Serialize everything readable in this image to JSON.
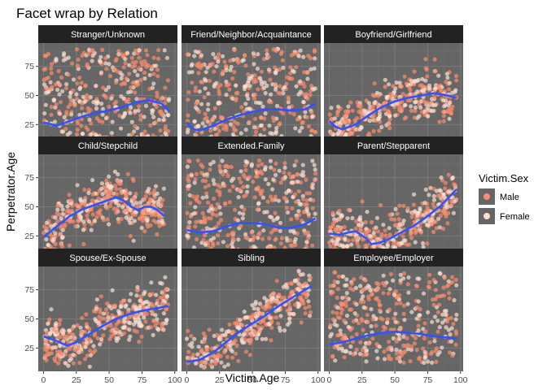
{
  "chart_data": {
    "type": "scatter",
    "title": "Facet wrap by Relation",
    "xlabel": "Victim.Age",
    "ylabel": "Perpetrator.Age",
    "xlim": [
      -4,
      102
    ],
    "ylim": [
      5,
      95
    ],
    "x_ticks": [
      0,
      25,
      50,
      75,
      100
    ],
    "y_ticks": [
      25,
      50,
      75
    ],
    "grid": true,
    "legend": {
      "title": "Victim.Sex",
      "position": "right",
      "entries": [
        {
          "label": "Male",
          "color": "#fc8d6e"
        },
        {
          "label": "Female",
          "color": "#fde0d2"
        }
      ]
    },
    "colors": {
      "panel_bg": "#666666",
      "strip_bg": "#222222",
      "grid_major": "#7a7a7a",
      "grid_minor": "#707070",
      "smooth_line": "#3352ff"
    },
    "facets": [
      {
        "label": "Stranger/Unknown",
        "smooth": [
          [
            0,
            27
          ],
          [
            10,
            24
          ],
          [
            20,
            28
          ],
          [
            30,
            32
          ],
          [
            40,
            35
          ],
          [
            50,
            37
          ],
          [
            60,
            40
          ],
          [
            70,
            44
          ],
          [
            80,
            46
          ],
          [
            90,
            43
          ],
          [
            96,
            36
          ]
        ]
      },
      {
        "label": "Friend/Neighbor/Acquaintance",
        "smooth": [
          [
            0,
            27
          ],
          [
            5,
            21
          ],
          [
            10,
            20
          ],
          [
            20,
            24
          ],
          [
            30,
            29
          ],
          [
            40,
            33
          ],
          [
            50,
            36
          ],
          [
            60,
            38
          ],
          [
            70,
            38
          ],
          [
            80,
            37
          ],
          [
            90,
            38
          ],
          [
            98,
            43
          ]
        ]
      },
      {
        "label": "Boyfriend/Girlfriend",
        "smooth": [
          [
            0,
            28
          ],
          [
            5,
            23
          ],
          [
            10,
            21
          ],
          [
            20,
            25
          ],
          [
            30,
            33
          ],
          [
            40,
            40
          ],
          [
            50,
            45
          ],
          [
            60,
            48
          ],
          [
            70,
            50
          ],
          [
            80,
            52
          ],
          [
            90,
            50
          ],
          [
            97,
            48
          ]
        ]
      },
      {
        "label": "Child/Stepchild",
        "smooth": [
          [
            0,
            24
          ],
          [
            10,
            33
          ],
          [
            20,
            42
          ],
          [
            30,
            48
          ],
          [
            40,
            52
          ],
          [
            50,
            56
          ],
          [
            55,
            58
          ],
          [
            60,
            56
          ],
          [
            67,
            50
          ],
          [
            72,
            47
          ],
          [
            77,
            50
          ],
          [
            82,
            50
          ],
          [
            87,
            47
          ],
          [
            92,
            42
          ]
        ]
      },
      {
        "label": "Extended.Family",
        "smooth": [
          [
            0,
            30
          ],
          [
            10,
            28
          ],
          [
            20,
            29
          ],
          [
            30,
            33
          ],
          [
            40,
            36
          ],
          [
            50,
            36
          ],
          [
            60,
            35
          ],
          [
            70,
            32
          ],
          [
            80,
            32
          ],
          [
            90,
            35
          ],
          [
            98,
            40
          ]
        ]
      },
      {
        "label": "Parent/Stepparent",
        "smooth": [
          [
            0,
            27
          ],
          [
            8,
            26
          ],
          [
            15,
            28
          ],
          [
            20,
            29
          ],
          [
            28,
            23
          ],
          [
            32,
            18
          ],
          [
            38,
            19
          ],
          [
            45,
            22
          ],
          [
            55,
            28
          ],
          [
            65,
            34
          ],
          [
            75,
            42
          ],
          [
            85,
            51
          ],
          [
            97,
            65
          ]
        ]
      },
      {
        "label": "Spouse/Ex-Spouse",
        "smooth": [
          [
            0,
            35
          ],
          [
            10,
            31
          ],
          [
            18,
            27
          ],
          [
            25,
            30
          ],
          [
            35,
            37
          ],
          [
            45,
            44
          ],
          [
            55,
            50
          ],
          [
            65,
            54
          ],
          [
            75,
            57
          ],
          [
            85,
            59
          ],
          [
            95,
            61
          ]
        ]
      },
      {
        "label": "Sibling",
        "smooth": [
          [
            0,
            13
          ],
          [
            10,
            15
          ],
          [
            20,
            21
          ],
          [
            30,
            30
          ],
          [
            40,
            39
          ],
          [
            50,
            46
          ],
          [
            60,
            53
          ],
          [
            70,
            61
          ],
          [
            80,
            68
          ],
          [
            90,
            75
          ],
          [
            95,
            78
          ]
        ]
      },
      {
        "label": "Employee/Employer",
        "smooth": [
          [
            0,
            28
          ],
          [
            10,
            30
          ],
          [
            20,
            33
          ],
          [
            30,
            36
          ],
          [
            40,
            38
          ],
          [
            50,
            39
          ],
          [
            60,
            38
          ],
          [
            70,
            37
          ],
          [
            80,
            35
          ],
          [
            90,
            34
          ],
          [
            97,
            33
          ]
        ]
      }
    ]
  }
}
